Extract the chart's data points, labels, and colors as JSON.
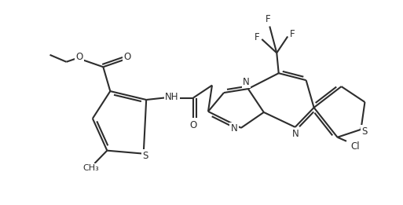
{
  "background_color": "#ffffff",
  "line_color": "#2d2d2d",
  "line_width": 1.5,
  "font_size": 8.5,
  "figsize": [
    5.13,
    2.61
  ],
  "dpi": 100,
  "xlim": [
    0,
    10.26
  ],
  "ylim": [
    0,
    5.22
  ]
}
